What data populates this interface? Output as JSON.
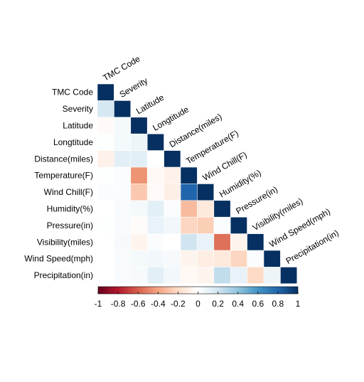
{
  "chart_data": {
    "type": "heatmap",
    "layout": "lower-triangle",
    "variables": [
      "TMC Code",
      "Severity",
      "Latitude",
      "Longtitude",
      "Distance(miles)",
      "Temperature(F)",
      "Wind Chill(F)",
      "Humidity(%)",
      "Pressure(in)",
      "Visibility(miles)",
      "Wind Speed(mph)",
      "Precipitation(in)"
    ],
    "matrix": [
      [
        1.0,
        0.18,
        -0.03,
        0.01,
        -0.08,
        0.01,
        0.02,
        0.0,
        0.01,
        0.0,
        0.0,
        0.0
      ],
      [
        0.18,
        1.0,
        0.05,
        0.05,
        0.12,
        0.02,
        0.02,
        0.03,
        0.03,
        0.04,
        0.03,
        0.03
      ],
      [
        -0.03,
        0.05,
        1.0,
        0.08,
        0.12,
        -0.45,
        -0.27,
        0.05,
        -0.02,
        -0.06,
        0.05,
        0.04
      ],
      [
        0.01,
        0.05,
        0.08,
        1.0,
        0.0,
        -0.04,
        -0.03,
        0.12,
        0.1,
        0.02,
        0.06,
        0.12
      ],
      [
        -0.08,
        0.12,
        0.12,
        0.0,
        1.0,
        -0.08,
        -0.09,
        0.02,
        0.06,
        0.0,
        0.04,
        0.06
      ],
      [
        0.01,
        0.02,
        -0.45,
        -0.04,
        -0.08,
        1.0,
        0.8,
        -0.32,
        -0.22,
        0.2,
        -0.06,
        -0.04
      ],
      [
        0.02,
        0.02,
        -0.27,
        -0.03,
        -0.09,
        0.8,
        1.0,
        -0.12,
        -0.25,
        0.1,
        -0.1,
        -0.06
      ],
      [
        0.0,
        0.03,
        0.05,
        0.12,
        0.02,
        -0.32,
        -0.12,
        1.0,
        0.02,
        -0.55,
        -0.12,
        0.25
      ],
      [
        0.01,
        0.03,
        -0.02,
        0.1,
        0.06,
        -0.22,
        -0.25,
        0.02,
        1.0,
        -0.06,
        -0.22,
        0.1
      ],
      [
        0.0,
        0.04,
        -0.06,
        0.02,
        0.0,
        0.2,
        0.1,
        -0.55,
        -0.06,
        1.0,
        0.02,
        -0.2
      ],
      [
        0.0,
        0.03,
        0.05,
        0.06,
        0.04,
        -0.06,
        -0.1,
        -0.12,
        -0.22,
        0.02,
        1.0,
        0.08
      ],
      [
        0.0,
        0.03,
        0.04,
        0.12,
        0.06,
        -0.04,
        -0.06,
        0.25,
        0.1,
        -0.2,
        0.08,
        1.0
      ]
    ],
    "colorbar": {
      "min": -1,
      "max": 1,
      "ticks": [
        -1,
        -0.8,
        -0.6,
        -0.4,
        -0.2,
        0,
        0.2,
        0.4,
        0.6,
        0.8,
        1
      ],
      "tick_labels": [
        "-1",
        "-0.8",
        "-0.6",
        "-0.4",
        "-0.2",
        "0",
        "0.2",
        "0.4",
        "0.6",
        "0.8",
        "1"
      ],
      "palette": [
        "#67001F",
        "#B2182B",
        "#D6604D",
        "#F4A582",
        "#FDDBC7",
        "#FFFFFF",
        "#D1E5F0",
        "#92C5DE",
        "#4393C3",
        "#2166AC",
        "#053061"
      ],
      "orientation": "horizontal",
      "position": "bottom"
    },
    "title": "",
    "grid": false
  }
}
